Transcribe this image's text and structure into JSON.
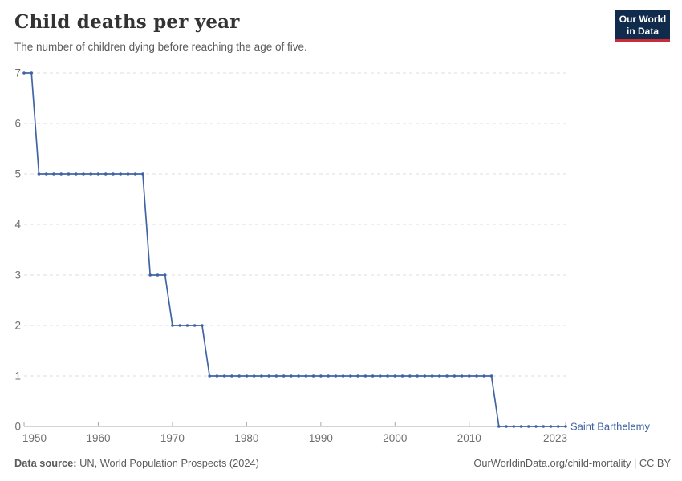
{
  "header": {
    "title": "Child deaths per year",
    "subtitle": "The number of children dying before reaching the age of five.",
    "logo": {
      "line1": "Our World",
      "line2": "in Data",
      "bg_color": "#112B4D",
      "bar_color": "#C82D37"
    }
  },
  "chart_data": {
    "type": "line",
    "title": "Child deaths per year",
    "subtitle": "The number of children dying before reaching the age of five.",
    "xlabel": "",
    "ylabel": "",
    "xlim": [
      1950,
      2023
    ],
    "ylim": [
      0,
      7
    ],
    "x_ticks": [
      1950,
      1960,
      1970,
      1980,
      1990,
      2000,
      2010,
      2023
    ],
    "y_ticks": [
      0,
      1,
      2,
      3,
      4,
      5,
      6,
      7
    ],
    "grid": "horizontal-dashed",
    "legend_position": "end-of-line",
    "colors": {
      "series": "#4064A3",
      "gridline": "#dedede",
      "axis": "#a8a8a8",
      "tick_label": "#6e6e6e"
    },
    "series": [
      {
        "name": "Saint Barthelemy",
        "color": "#4064A3",
        "x_start": 1950,
        "values": [
          7,
          7,
          5,
          5,
          5,
          5,
          5,
          5,
          5,
          5,
          5,
          5,
          5,
          5,
          5,
          5,
          5,
          3,
          3,
          3,
          2,
          2,
          2,
          2,
          2,
          1,
          1,
          1,
          1,
          1,
          1,
          1,
          1,
          1,
          1,
          1,
          1,
          1,
          1,
          1,
          1,
          1,
          1,
          1,
          1,
          1,
          1,
          1,
          1,
          1,
          1,
          1,
          1,
          1,
          1,
          1,
          1,
          1,
          1,
          1,
          1,
          1,
          1,
          1,
          0,
          0,
          0,
          0,
          0,
          0,
          0,
          0,
          0,
          0
        ]
      }
    ]
  },
  "footer": {
    "source_label": "Data source:",
    "source_text": "UN, World Population Prospects (2024)",
    "link_text": "OurWorldinData.org/child-mortality | CC BY"
  }
}
